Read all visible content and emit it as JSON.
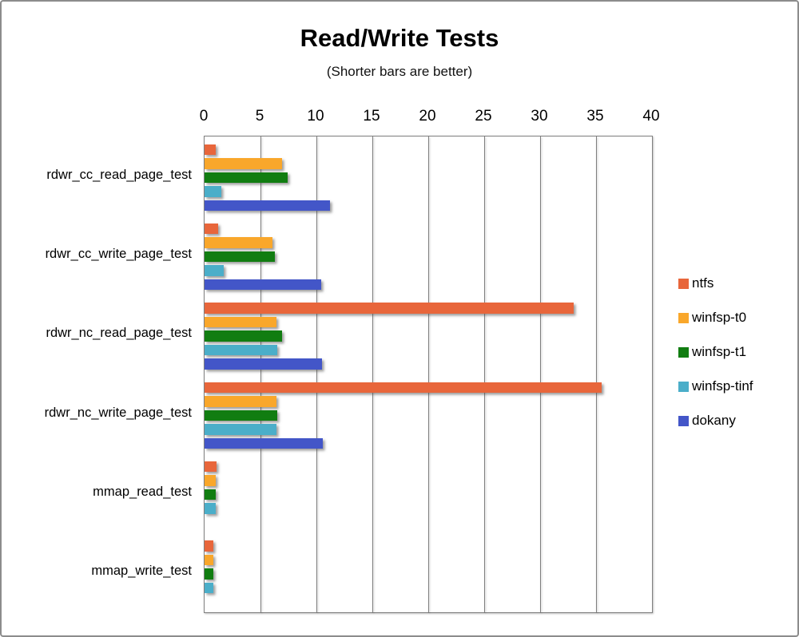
{
  "chart_data": {
    "type": "bar",
    "orientation": "horizontal",
    "title": "Read/Write Tests",
    "subtitle": "(Shorter bars are better)",
    "xlabel": "",
    "ylabel": "",
    "xlim": [
      0,
      40
    ],
    "xticks": [
      0,
      5,
      10,
      15,
      20,
      25,
      30,
      35,
      40
    ],
    "grid": true,
    "legend_position": "right",
    "categories": [
      "rdwr_cc_read_page_test",
      "rdwr_cc_write_page_test",
      "rdwr_nc_read_page_test",
      "rdwr_nc_write_page_test",
      "mmap_read_test",
      "mmap_write_test"
    ],
    "series": [
      {
        "name": "ntfs",
        "color": "#E8663B",
        "values": [
          1.0,
          1.2,
          33.0,
          35.5,
          1.1,
          0.8
        ]
      },
      {
        "name": "winfsp-t0",
        "color": "#F9A72B",
        "values": [
          6.9,
          6.1,
          6.4,
          6.4,
          1.0,
          0.8
        ]
      },
      {
        "name": "winfsp-t1",
        "color": "#117D11",
        "values": [
          7.4,
          6.3,
          6.9,
          6.5,
          1.0,
          0.8
        ]
      },
      {
        "name": "winfsp-tinf",
        "color": "#4BAEC9",
        "values": [
          1.5,
          1.7,
          6.5,
          6.4,
          1.0,
          0.8
        ]
      },
      {
        "name": "dokany",
        "color": "#4356C8",
        "values": [
          11.2,
          10.4,
          10.5,
          10.6,
          0,
          0
        ]
      }
    ]
  }
}
